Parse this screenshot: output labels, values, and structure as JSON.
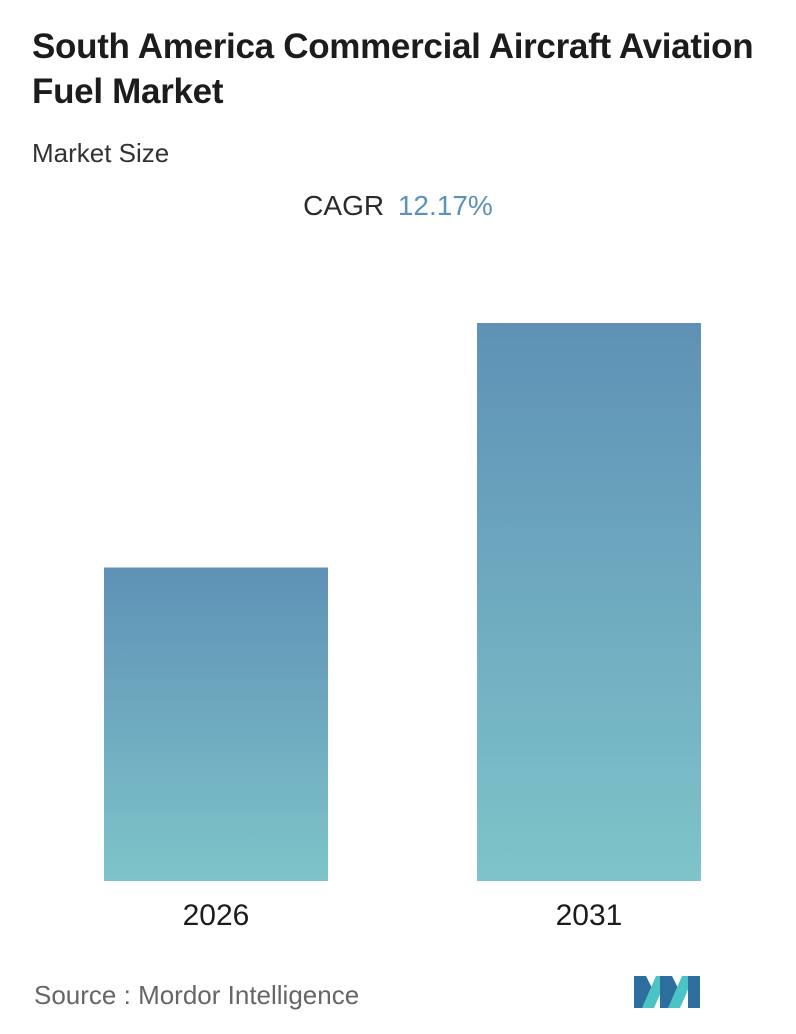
{
  "header": {
    "title": "South America Commercial Aircraft Aviation Fuel Market",
    "subtitle": "Market Size",
    "cagr_label": "CAGR",
    "cagr_value": "12.17%"
  },
  "chart_data": {
    "type": "bar",
    "title": "South America Commercial Aircraft Aviation Fuel Market",
    "subtitle": "Market Size",
    "categories": [
      "2026",
      "2031"
    ],
    "values": [
      1.0,
      1.78
    ],
    "xlabel": "",
    "ylabel": "",
    "ylim": [
      0,
      1.78
    ],
    "grid": false,
    "legend": "none",
    "colors": {
      "bar_top": "#5f91b6",
      "bar_bottom": "#7ec4c9"
    }
  },
  "footer": {
    "source_label": "Source :",
    "source_name": "Mordor Intelligence",
    "logo_icon": "mordor-intelligence-logo-icon",
    "logo_colors": [
      "#2c6f9e",
      "#4cc3c5"
    ]
  }
}
